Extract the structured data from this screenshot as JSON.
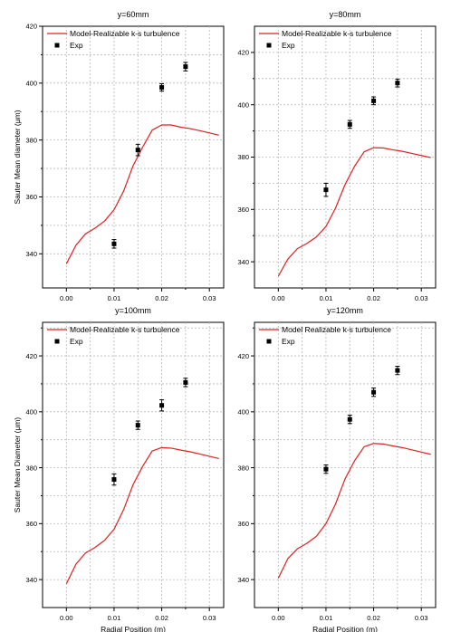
{
  "chart_data": [
    {
      "type": "line",
      "title": "y=60mm",
      "ylabel": "Sauter Mean diameter (μm)",
      "xlabel": "",
      "xlim": [
        -0.005,
        0.033
      ],
      "ylim": [
        328,
        420
      ],
      "xticks": [
        "0.00",
        "0.01",
        "0.02",
        "0.03"
      ],
      "yticks": [
        "340",
        "360",
        "380",
        "400",
        "420"
      ],
      "grid": true,
      "legend_position": "top-left",
      "series": [
        {
          "name": "Model-Realizable k-s turbulence",
          "kind": "line",
          "color": "#e02020",
          "x": [
            0.0,
            0.002,
            0.004,
            0.006,
            0.008,
            0.01,
            0.012,
            0.014,
            0.016,
            0.018,
            0.02,
            0.022,
            0.024,
            0.026,
            0.028,
            0.03,
            0.032
          ],
          "y": [
            336.5,
            343.0,
            347.0,
            349.0,
            351.5,
            355.5,
            362.0,
            371.0,
            377.5,
            383.5,
            385.3,
            385.3,
            384.5,
            384.0,
            383.3,
            382.5,
            381.7
          ]
        },
        {
          "name": "Exp",
          "kind": "scatter",
          "color": "#000000",
          "x": [
            0.01,
            0.015,
            0.02,
            0.025
          ],
          "y": [
            343.5,
            376.5,
            398.5,
            405.8
          ],
          "err": [
            1.5,
            2.0,
            1.3,
            1.5
          ]
        }
      ]
    },
    {
      "type": "line",
      "title": "y=80mm",
      "ylabel": "",
      "xlabel": "",
      "xlim": [
        -0.005,
        0.033
      ],
      "ylim": [
        330,
        430
      ],
      "xticks": [
        "0.00",
        "0.01",
        "0.02",
        "0.03"
      ],
      "yticks": [
        "340",
        "360",
        "380",
        "400",
        "420"
      ],
      "grid": true,
      "legend_position": "top-left",
      "series": [
        {
          "name": "Model-Realizable k-s turbulence",
          "kind": "line",
          "color": "#e02020",
          "x": [
            0.0,
            0.002,
            0.004,
            0.006,
            0.008,
            0.01,
            0.012,
            0.014,
            0.016,
            0.018,
            0.02,
            0.022,
            0.024,
            0.026,
            0.028,
            0.03,
            0.032
          ],
          "y": [
            334.5,
            341.0,
            345.0,
            347.0,
            349.5,
            353.5,
            360.5,
            369.5,
            376.5,
            382.0,
            383.6,
            383.5,
            382.8,
            382.2,
            381.4,
            380.6,
            379.8
          ]
        },
        {
          "name": "Exp",
          "kind": "scatter",
          "color": "#000000",
          "x": [
            0.01,
            0.015,
            0.02,
            0.025
          ],
          "y": [
            367.5,
            392.5,
            401.5,
            408.3
          ],
          "err": [
            2.5,
            1.5,
            1.5,
            1.5
          ]
        }
      ]
    },
    {
      "type": "line",
      "title": "y=100mm",
      "ylabel": "Sauter Mean Diameter (μm)",
      "xlabel": "Radial Position (m)",
      "xlim": [
        -0.005,
        0.033
      ],
      "ylim": [
        330,
        432
      ],
      "xticks": [
        "0.00",
        "0.01",
        "0.02",
        "0.03"
      ],
      "yticks": [
        "340",
        "360",
        "380",
        "400",
        "420"
      ],
      "grid": true,
      "legend_position": "top-left",
      "series": [
        {
          "name": "Model-Realizable k-s turbulence",
          "kind": "line",
          "color": "#e02020",
          "x": [
            0.0,
            0.002,
            0.004,
            0.006,
            0.008,
            0.01,
            0.012,
            0.014,
            0.016,
            0.018,
            0.02,
            0.022,
            0.024,
            0.026,
            0.028,
            0.03,
            0.032
          ],
          "y": [
            338.5,
            345.5,
            349.5,
            351.5,
            354.0,
            358.0,
            365.0,
            374.0,
            380.5,
            386.0,
            387.2,
            387.0,
            386.3,
            385.7,
            384.9,
            384.1,
            383.3
          ]
        },
        {
          "name": "Exp",
          "kind": "scatter",
          "color": "#000000",
          "x": [
            0.01,
            0.015,
            0.02,
            0.025
          ],
          "y": [
            375.8,
            395.2,
            402.3,
            410.5
          ],
          "err": [
            2.0,
            1.5,
            2.0,
            1.5
          ]
        }
      ]
    },
    {
      "type": "line",
      "title": "y=120mm",
      "ylabel": "",
      "xlabel": "Radial Position (m)",
      "xlim": [
        -0.005,
        0.033
      ],
      "ylim": [
        330,
        432
      ],
      "xticks": [
        "0.00",
        "0.01",
        "0.02",
        "0.03"
      ],
      "yticks": [
        "340",
        "360",
        "380",
        "400",
        "420"
      ],
      "grid": true,
      "legend_position": "top-left",
      "series": [
        {
          "name": "Model Realizable k-s turbulence",
          "kind": "line",
          "color": "#e02020",
          "x": [
            0.0,
            0.002,
            0.004,
            0.006,
            0.008,
            0.01,
            0.012,
            0.014,
            0.016,
            0.018,
            0.02,
            0.022,
            0.024,
            0.026,
            0.028,
            0.03,
            0.032
          ],
          "y": [
            340.5,
            347.5,
            351.0,
            353.0,
            355.5,
            360.0,
            367.0,
            376.0,
            382.5,
            387.5,
            388.7,
            388.5,
            387.8,
            387.2,
            386.4,
            385.6,
            384.8
          ]
        },
        {
          "name": "Exp",
          "kind": "scatter",
          "color": "#000000",
          "x": [
            0.01,
            0.015,
            0.02,
            0.025
          ],
          "y": [
            379.5,
            397.3,
            407.0,
            414.8
          ],
          "err": [
            1.5,
            1.5,
            1.5,
            1.5
          ]
        }
      ]
    }
  ]
}
